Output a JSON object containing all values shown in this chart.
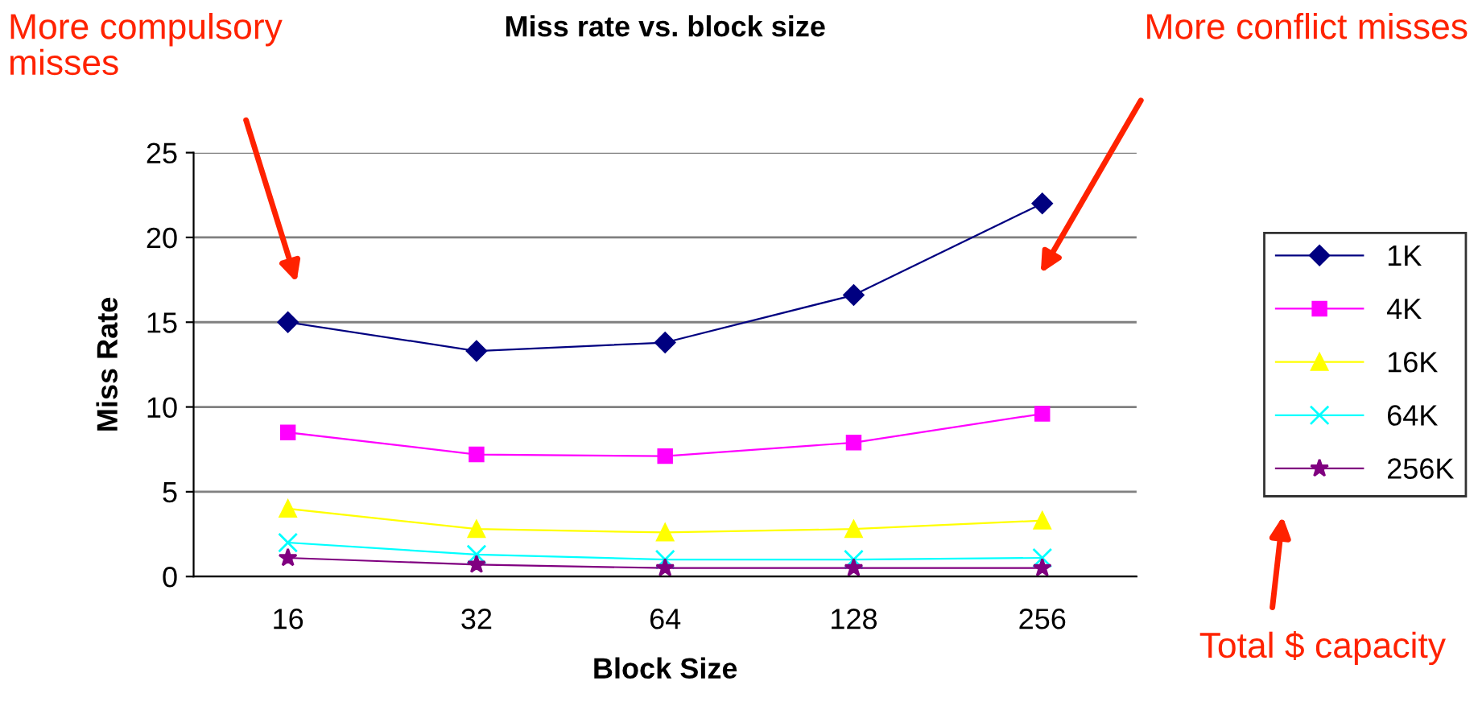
{
  "chart_data": {
    "type": "line",
    "title": "Miss rate vs. block size",
    "xlabel": "Block Size",
    "ylabel": "Miss Rate",
    "categories": [
      "16",
      "32",
      "64",
      "128",
      "256"
    ],
    "series": [
      {
        "name": "1K",
        "color": "#000080",
        "marker": "diamond",
        "values": [
          15.0,
          13.3,
          13.8,
          16.6,
          22.0
        ]
      },
      {
        "name": "4K",
        "color": "#ff00ff",
        "marker": "square",
        "values": [
          8.5,
          7.2,
          7.1,
          7.9,
          9.6
        ]
      },
      {
        "name": "16K",
        "color": "#ffff00",
        "marker": "triangle",
        "values": [
          4.0,
          2.8,
          2.6,
          2.8,
          3.3
        ]
      },
      {
        "name": "64K",
        "color": "#00ffff",
        "marker": "cross",
        "values": [
          2.0,
          1.3,
          1.0,
          1.0,
          1.1
        ]
      },
      {
        "name": "256K",
        "color": "#800080",
        "marker": "star",
        "values": [
          1.1,
          0.7,
          0.5,
          0.5,
          0.5
        ]
      }
    ],
    "ylim": [
      0,
      25
    ],
    "yticks": [
      0,
      5,
      10,
      15,
      20,
      25
    ],
    "grid": "y",
    "legend": "right",
    "line_style": "solid",
    "annotations": [
      "More compulsory\nmisses",
      "More conflict misses",
      "Total $ capacity"
    ]
  }
}
